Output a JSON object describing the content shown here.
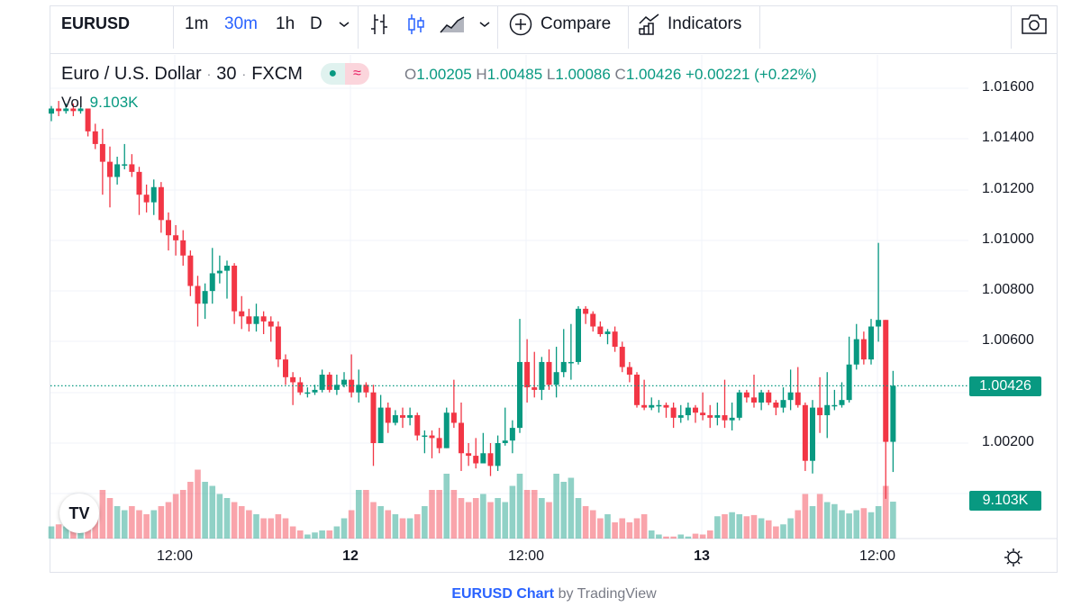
{
  "toolbar": {
    "symbol": "EURUSD",
    "intervals": [
      "1m",
      "30m",
      "1h",
      "D"
    ],
    "active_interval": "30m",
    "compare_label": "Compare",
    "indicators_label": "Indicators"
  },
  "legend": {
    "name": "Euro / U.S. Dollar",
    "interval": "30",
    "exchange": "FXCM",
    "dot_sep": "·",
    "pill_icon": "≈",
    "o_key": "O",
    "o": "1.00205",
    "h_key": "H",
    "h": "1.00485",
    "l_key": "L",
    "l": "1.00086",
    "c_key": "C",
    "c": "1.00426",
    "change": "+0.00221 (+0.22%)",
    "vol_label": "Vol",
    "vol_value": "9.103K"
  },
  "price_axis": {
    "labels": [
      "1.01600",
      "1.01400",
      "1.01200",
      "1.01000",
      "1.00800",
      "1.00600",
      "1.00200"
    ],
    "last_price_tag": "1.00426",
    "volume_tag": "9.103K"
  },
  "time_axis": {
    "labels": [
      {
        "text": "12:00",
        "bold": false
      },
      {
        "text": "12",
        "bold": true
      },
      {
        "text": "12:00",
        "bold": false
      },
      {
        "text": "13",
        "bold": true
      },
      {
        "text": "12:00",
        "bold": false
      }
    ]
  },
  "footer": {
    "link": "EURUSD Chart",
    "by": "by TradingView"
  },
  "logo_text": "TV",
  "colors": {
    "up": "#089981",
    "down": "#f23645",
    "accent": "#2962ff"
  },
  "chart_data": {
    "type": "candlestick",
    "title": "Euro / U.S. Dollar · 30 · FXCM",
    "ylim": [
      0.9994,
      1.0177
    ],
    "first_open": 1.015,
    "close": [
      1.0152,
      1.0151,
      1.0152,
      1.0151,
      1.0152,
      1.0143,
      1.0138,
      1.0131,
      1.0125,
      1.013,
      1.013,
      1.0127,
      1.0118,
      1.0115,
      1.0121,
      1.0108,
      1.0102,
      1.01,
      1.0094,
      1.0082,
      1.0075,
      1.008,
      1.0087,
      1.0088,
      1.009,
      1.0072,
      1.007,
      1.0067,
      1.007,
      1.0068,
      1.0066,
      1.0053,
      1.0046,
      1.0044,
      1.004,
      1.004,
      1.0041,
      1.0047,
      1.0041,
      1.0043,
      1.0045,
      1.004,
      1.0043,
      1.004,
      1.002,
      1.0034,
      1.0028,
      1.0031,
      1.003,
      1.0031,
      1.0023,
      1.0023,
      1.0022,
      1.0018,
      1.0032,
      1.0028,
      1.0016,
      1.0015,
      1.0012,
      1.0016,
      1.0011,
      1.002,
      1.0021,
      1.0026,
      1.0052,
      1.0042,
      1.0041,
      1.0052,
      1.0043,
      1.0048,
      1.0052,
      1.0052,
      1.0073,
      1.0071,
      1.0066,
      1.0063,
      1.0064,
      1.0058,
      1.005,
      1.0047,
      1.0035,
      1.0034,
      1.0035,
      1.0035,
      1.0034,
      1.003,
      1.0031,
      1.0034,
      1.0032,
      1.0031,
      1.003,
      1.0031,
      1.0029,
      1.003,
      1.004,
      1.0038,
      1.0036,
      1.004,
      1.0036,
      1.0034,
      1.0037,
      1.004,
      1.0035,
      1.0013,
      1.0034,
      1.0031,
      1.0035,
      1.0035,
      1.0037,
      1.0051,
      1.0061,
      1.0053,
      1.0066,
      1.00686,
      1.00205,
      1.00426
    ],
    "high": [
      1.0153,
      1.0155,
      1.0154,
      1.0154,
      1.0153,
      1.0152,
      1.0146,
      1.0144,
      1.0137,
      1.0133,
      1.0138,
      1.0134,
      1.0129,
      1.0122,
      1.0124,
      1.0123,
      1.0111,
      1.0106,
      1.0104,
      1.0096,
      1.0086,
      1.0083,
      1.0097,
      1.0094,
      1.0092,
      1.0091,
      1.0078,
      1.0073,
      1.0075,
      1.0072,
      1.007,
      1.0068,
      1.0055,
      1.0048,
      1.0046,
      1.0042,
      1.0043,
      1.0049,
      1.0048,
      1.0047,
      1.0048,
      1.0055,
      1.0049,
      1.0044,
      1.0043,
      1.0039,
      1.0036,
      1.0033,
      1.0034,
      1.0034,
      1.0032,
      1.0025,
      1.0025,
      1.0026,
      1.0034,
      1.0045,
      1.0036,
      1.002,
      1.0022,
      1.0024,
      1.002,
      1.0023,
      1.0034,
      1.0029,
      1.0069,
      1.0061,
      1.0056,
      1.0054,
      1.0057,
      1.0058,
      1.0065,
      1.0067,
      1.0074,
      1.0074,
      1.0072,
      1.0068,
      1.0065,
      1.0066,
      1.006,
      1.0052,
      1.0048,
      1.0045,
      1.0038,
      1.0037,
      1.0036,
      1.0036,
      1.0035,
      1.0036,
      1.0035,
      1.004,
      1.0035,
      1.0036,
      1.0045,
      1.0036,
      1.0041,
      1.0041,
      1.0047,
      1.0041,
      1.0041,
      1.0037,
      1.0042,
      1.0049,
      1.005,
      1.0036,
      1.0037,
      1.0046,
      1.0048,
      1.0041,
      1.0044,
      1.0062,
      1.0067,
      1.0064,
      1.0069,
      1.0099,
      1.00686,
      1.00485
    ],
    "low": [
      1.0147,
      1.0149,
      1.015,
      1.0149,
      1.015,
      1.0141,
      1.0136,
      1.0118,
      1.0113,
      1.0122,
      1.0128,
      1.0125,
      1.011,
      1.0111,
      1.011,
      1.0103,
      1.0096,
      1.0094,
      1.009,
      1.0078,
      1.0066,
      1.0069,
      1.0075,
      1.0083,
      1.0077,
      1.0067,
      1.0065,
      1.0064,
      1.0064,
      1.0063,
      1.006,
      1.005,
      1.0043,
      1.0035,
      1.0039,
      1.0038,
      1.0039,
      1.004,
      1.004,
      1.0039,
      1.0042,
      1.0038,
      1.0036,
      1.0038,
      1.0011,
      1.002,
      1.0024,
      1.0027,
      1.0026,
      1.0027,
      1.0021,
      1.0016,
      1.0014,
      1.0016,
      1.0018,
      1.0026,
      1.0009,
      1.0011,
      1.001,
      1.0013,
      1.0007,
      1.0009,
      1.0019,
      1.0016,
      1.0024,
      1.0036,
      1.0038,
      1.0037,
      1.0041,
      1.0038,
      1.0046,
      1.0045,
      1.0051,
      1.0067,
      1.0064,
      1.0062,
      1.0059,
      1.0056,
      1.0048,
      1.0044,
      1.0034,
      1.0033,
      1.0033,
      1.0032,
      1.003,
      1.0026,
      1.0028,
      1.0029,
      1.0028,
      1.0029,
      1.0026,
      1.0027,
      1.0026,
      1.0025,
      1.0029,
      1.0036,
      1.0034,
      1.0033,
      1.0035,
      1.0031,
      1.0032,
      1.0033,
      1.0034,
      1.0009,
      1.0008,
      1.0024,
      1.0022,
      1.0033,
      1.0034,
      1.0036,
      1.0049,
      1.0051,
      1.0051,
      1.006,
      0.9998,
      1.00086
    ],
    "volume_k": [
      3,
      3.5,
      3,
      3,
      3.5,
      6,
      7,
      12,
      10,
      8,
      7,
      8,
      7,
      6,
      7,
      8,
      9,
      11,
      12,
      14,
      17,
      14,
      13,
      11,
      10,
      9,
      8,
      7,
      6,
      5,
      5,
      6,
      5,
      3,
      2,
      1,
      1.5,
      2,
      2,
      3,
      5,
      7,
      12,
      12,
      9,
      8,
      7,
      6,
      5,
      5,
      6,
      8,
      12,
      12,
      16,
      12,
      10,
      9,
      10,
      11,
      9,
      10,
      9,
      13,
      16,
      12,
      12,
      10,
      9,
      16,
      14,
      15,
      10,
      8,
      7,
      5,
      6,
      4,
      5,
      4,
      5,
      6,
      2,
      1,
      0.5,
      0.5,
      1,
      0.5,
      1.2,
      1,
      2,
      5.5,
      6,
      6.5,
      6,
      5.5,
      5.8,
      5,
      4.5,
      3,
      3.5,
      5,
      7,
      11,
      8,
      11,
      9,
      8.5,
      7,
      6.2,
      7,
      7.5,
      6.5,
      8,
      13,
      9.103
    ],
    "last_price": 1.00426,
    "grid": true
  }
}
